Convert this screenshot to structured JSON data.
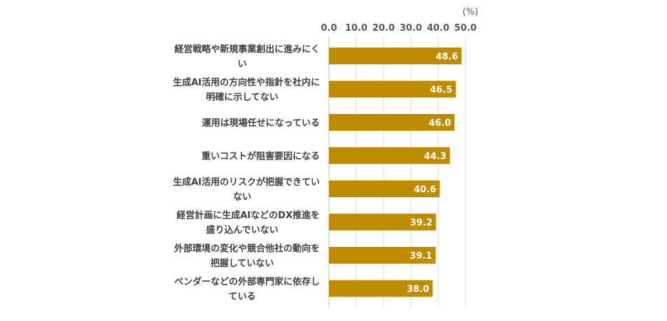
{
  "chart_data": {
    "type": "bar",
    "orientation": "horizontal",
    "unit_label": "(%)",
    "xlim": [
      0,
      50
    ],
    "ticks": [
      "0.0",
      "10.0",
      "20.0",
      "30.0",
      "40.0",
      "50.0"
    ],
    "grid": true,
    "axis_position": "top",
    "bar_color": "#BF8C00",
    "categories": [
      [
        "経営戦略や新規事業創出に進みにく",
        "い"
      ],
      [
        "生成AI活用の方向性や指針を社内に",
        "明確に示してない"
      ],
      [
        "運用は現場任せになっている"
      ],
      [
        "重いコストが阻害要因になる"
      ],
      [
        "生成AI活用のリスクが把握できてい",
        "ない"
      ],
      [
        "経営計画に生成AIなどのDX推進を",
        "盛り込んでいない"
      ],
      [
        "外部環境の変化や競合他社の動向を",
        "把握していない"
      ],
      [
        "ベンダーなどの外部専門家に依存し",
        "ている"
      ]
    ],
    "values": [
      48.6,
      46.5,
      46.0,
      44.3,
      40.6,
      39.2,
      39.1,
      38.0
    ],
    "value_labels": [
      "48.6",
      "46.5",
      "46.0",
      "44.3",
      "40.6",
      "39.2",
      "39.1",
      "38.0"
    ]
  }
}
